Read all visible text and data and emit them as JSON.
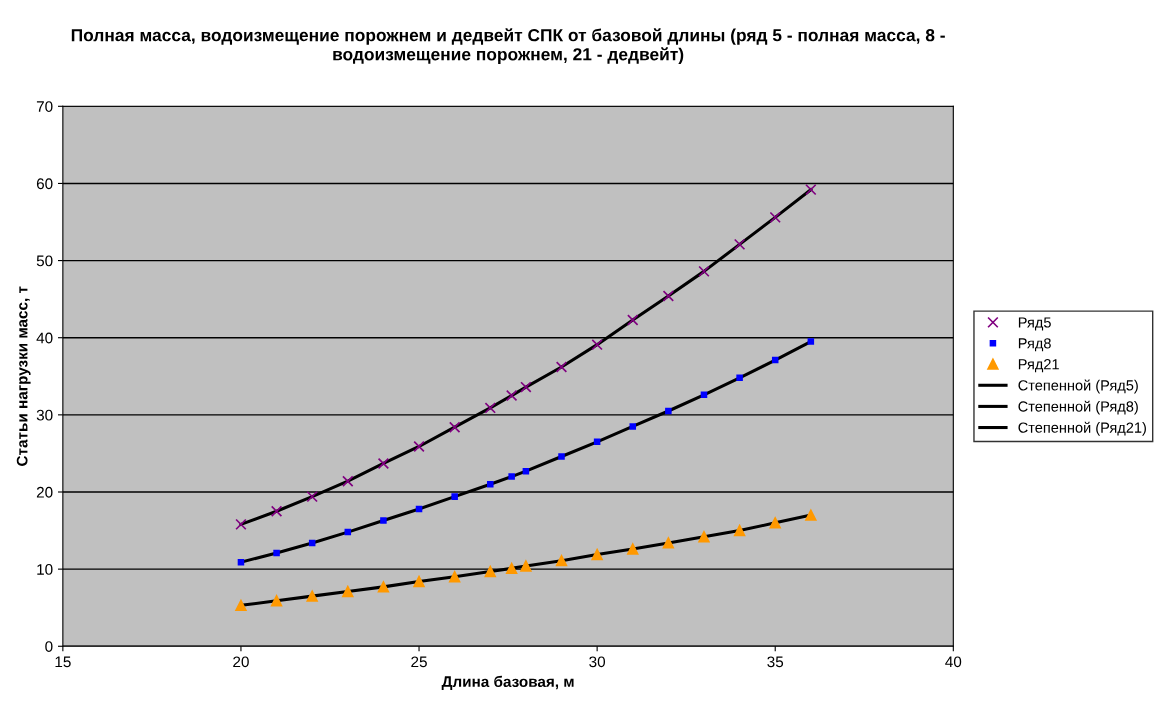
{
  "chart_data": {
    "type": "scatter",
    "title": "Полная масса, водоизмещение порожнем и дедвейт СПК от базовой длины (ряд 5 - полная масса, 8 - водоизмещение порожнем, 21 - дедвейт)",
    "xlabel": "Длина базовая, м",
    "ylabel": "Статьи нагрузки масс, т",
    "xlim": [
      15,
      40
    ],
    "xticks": [
      15,
      20,
      25,
      30,
      35,
      40
    ],
    "ylim": [
      0,
      70
    ],
    "yticks": [
      0,
      10,
      20,
      30,
      40,
      50,
      60,
      70
    ],
    "grid": "y",
    "legend": "right",
    "x": [
      20,
      21,
      22,
      23,
      24,
      25,
      26,
      27,
      27.6,
      28,
      29,
      30,
      31,
      32,
      33,
      34,
      35,
      36
    ],
    "series": [
      {
        "name": "Ряд5",
        "marker": "cross",
        "color": "#800080",
        "values": [
          15.8,
          17.5,
          19.4,
          21.4,
          23.7,
          25.9,
          28.4,
          30.9,
          32.5,
          33.6,
          36.2,
          39.1,
          42.3,
          45.4,
          48.6,
          52.1,
          55.6,
          59.2
        ]
      },
      {
        "name": "Ряд8",
        "marker": "square",
        "color": "#0000ff",
        "values": [
          10.9,
          12.1,
          13.4,
          14.8,
          16.3,
          17.8,
          19.4,
          21.0,
          22.0,
          22.7,
          24.6,
          26.5,
          28.5,
          30.5,
          32.6,
          34.8,
          37.1,
          39.5
        ]
      },
      {
        "name": "Ряд21",
        "marker": "triangle",
        "color": "#ff9900",
        "values": [
          5.3,
          5.9,
          6.5,
          7.1,
          7.7,
          8.4,
          9.0,
          9.7,
          10.1,
          10.4,
          11.1,
          11.9,
          12.6,
          13.4,
          14.2,
          15.0,
          16.0,
          17.0
        ]
      },
      {
        "name": "Степенной (Ряд5)",
        "type": "line",
        "marker": "none",
        "line_style": "solid",
        "color": "#000000",
        "values": [
          15.8,
          17.5,
          19.4,
          21.4,
          23.7,
          25.9,
          28.4,
          30.9,
          32.5,
          33.6,
          36.2,
          39.1,
          42.3,
          45.4,
          48.6,
          52.1,
          55.6,
          59.2
        ]
      },
      {
        "name": "Степенной (Ряд8)",
        "type": "line",
        "marker": "none",
        "line_style": "solid",
        "color": "#000000",
        "values": [
          10.9,
          12.1,
          13.4,
          14.8,
          16.3,
          17.8,
          19.4,
          21.0,
          22.0,
          22.7,
          24.6,
          26.5,
          28.5,
          30.5,
          32.6,
          34.8,
          37.1,
          39.5
        ]
      },
      {
        "name": "Степенной (Ряд21)",
        "type": "line",
        "marker": "none",
        "line_style": "solid",
        "color": "#000000",
        "values": [
          5.3,
          5.9,
          6.5,
          7.1,
          7.7,
          8.4,
          9.0,
          9.7,
          10.1,
          10.4,
          11.1,
          11.9,
          12.6,
          13.4,
          14.2,
          15.0,
          16.0,
          17.0
        ]
      }
    ]
  }
}
